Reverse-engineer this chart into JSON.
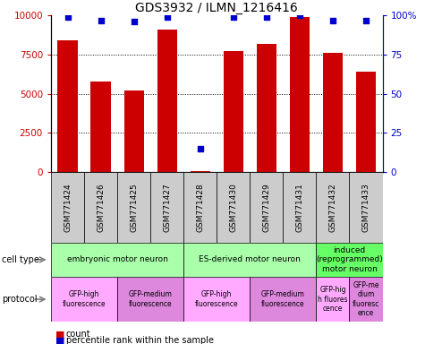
{
  "title": "GDS3932 / ILMN_1216416",
  "samples": [
    "GSM771424",
    "GSM771426",
    "GSM771425",
    "GSM771427",
    "GSM771428",
    "GSM771430",
    "GSM771429",
    "GSM771431",
    "GSM771432",
    "GSM771433"
  ],
  "counts": [
    8400,
    5800,
    5200,
    9100,
    50,
    7700,
    8200,
    9900,
    7600,
    6400
  ],
  "percentiles": [
    99,
    97,
    96,
    99,
    15,
    99,
    99,
    100,
    97,
    97
  ],
  "bar_color": "#cc0000",
  "dot_color": "#0000cc",
  "ylim_left": [
    0,
    10000
  ],
  "ylim_right": [
    0,
    100
  ],
  "yticks_left": [
    0,
    2500,
    5000,
    7500,
    10000
  ],
  "yticks_right": [
    0,
    25,
    50,
    75,
    100
  ],
  "ytick_labels_left": [
    "0",
    "2500",
    "5000",
    "7500",
    "10000"
  ],
  "ytick_labels_right": [
    "0",
    "25",
    "50",
    "75",
    "100%"
  ],
  "cell_type_groups": [
    {
      "label": "embryonic motor neuron",
      "start": 0,
      "end": 3,
      "color": "#aaffaa"
    },
    {
      "label": "ES-derived motor neuron",
      "start": 4,
      "end": 7,
      "color": "#aaffaa"
    },
    {
      "label": "induced\n(reprogrammed)\nmotor neuron",
      "start": 8,
      "end": 9,
      "color": "#66ff66"
    }
  ],
  "protocol_groups": [
    {
      "label": "GFP-high\nfluorescence",
      "start": 0,
      "end": 1,
      "color": "#ffaaff"
    },
    {
      "label": "GFP-medium\nfluorescence",
      "start": 2,
      "end": 3,
      "color": "#dd88dd"
    },
    {
      "label": "GFP-high\nfluorescence",
      "start": 4,
      "end": 5,
      "color": "#ffaaff"
    },
    {
      "label": "GFP-medium\nfluorescence",
      "start": 6,
      "end": 7,
      "color": "#dd88dd"
    },
    {
      "label": "GFP-hig\nh fluores\ncence",
      "start": 8,
      "end": 8,
      "color": "#ffaaff"
    },
    {
      "label": "GFP-me\ndium\nfluoresc\nence",
      "start": 9,
      "end": 9,
      "color": "#dd88dd"
    }
  ],
  "sample_bg_color": "#cccccc",
  "legend_count_color": "#cc0000",
  "legend_dot_color": "#0000cc"
}
